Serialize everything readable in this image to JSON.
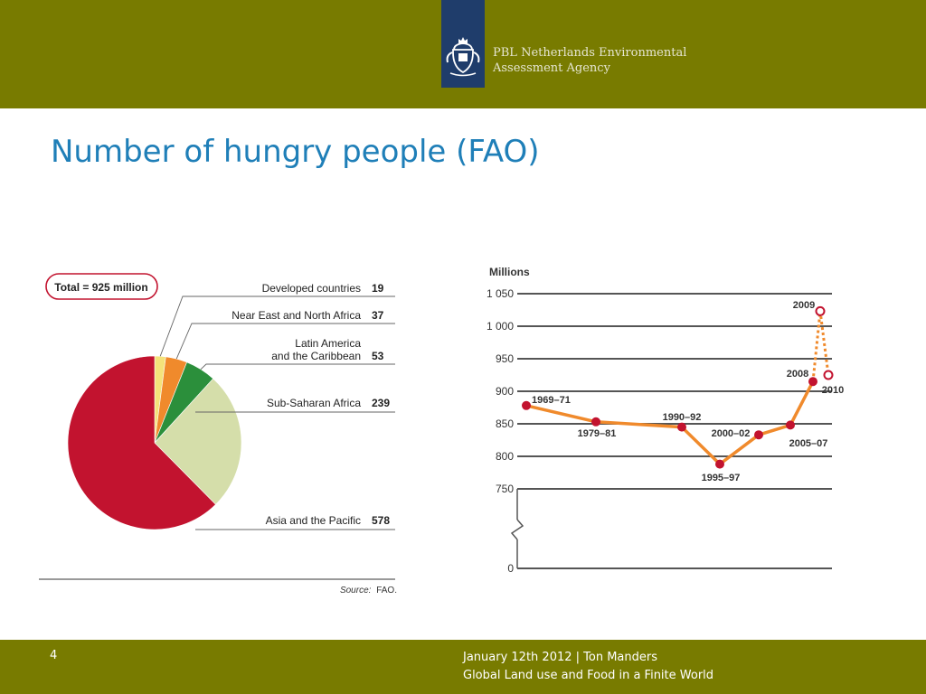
{
  "header": {
    "band_color": "#787b00",
    "logo_box_color": "#1f3d6b",
    "logo_icon": "coat-of-arms-icon",
    "agency_line1": "PBL Netherlands Environmental",
    "agency_line2": "Assessment Agency",
    "agency_text_color": "#e6e6d2"
  },
  "slide": {
    "title": "Number of hungry people (FAO)",
    "title_color": "#1f7fb8"
  },
  "footer": {
    "band_color": "#787b00",
    "page_number": "4",
    "line1": "January 12th 2012 | Ton Manders",
    "line2": "Global Land use and Food in a Finite World"
  },
  "chart_data": [
    {
      "type": "pie",
      "title": "",
      "total_label": "Total = 925 million",
      "slices": [
        {
          "label": "Developed countries",
          "value": 19,
          "value_label": "19",
          "color": "#f4e27a"
        },
        {
          "label": "Near East and North Africa",
          "value": 37,
          "value_label": "37",
          "color": "#f08a2c"
        },
        {
          "label_line1": "Latin America",
          "label_line2": "and the Caribbean",
          "value": 53,
          "value_label": "53",
          "color": "#2b8f3b"
        },
        {
          "label": "Sub-Saharan Africa",
          "value": 239,
          "value_label": "239",
          "color": "#d5deaa"
        },
        {
          "label": "Asia and the Pacific",
          "value": 578,
          "value_label": "578",
          "color": "#c2132f"
        }
      ],
      "source_prefix": "Source:",
      "source_text": "FAO."
    },
    {
      "type": "line",
      "ylabel": "Millions",
      "y_axis_break": true,
      "yticks": [
        0,
        750,
        800,
        850,
        900,
        950,
        1000,
        1050
      ],
      "ytick_labels": [
        "0",
        "750",
        "800",
        "850",
        "900",
        "950",
        "1 000",
        "1 050"
      ],
      "ylim": [
        750,
        1050
      ],
      "grid": true,
      "line_color": "#f08a2c",
      "marker_color": "#c2132f",
      "series": [
        {
          "style": "solid",
          "points": [
            {
              "x": "1969–71",
              "y": 878
            },
            {
              "x": "1979–81",
              "y": 853
            },
            {
              "x": "1990–92",
              "y": 845
            },
            {
              "x": "1995–97",
              "y": 788
            },
            {
              "x": "2000–02",
              "y": 833
            },
            {
              "x": "2005–07",
              "y": 848
            },
            {
              "x": "2008",
              "y": 915
            }
          ]
        },
        {
          "style": "dotted",
          "points": [
            {
              "x": "2008",
              "y": 915
            },
            {
              "x": "2009",
              "y": 1023
            },
            {
              "x": "2010",
              "y": 925
            }
          ],
          "hollow_markers": [
            "2009",
            "2010"
          ]
        }
      ]
    }
  ]
}
